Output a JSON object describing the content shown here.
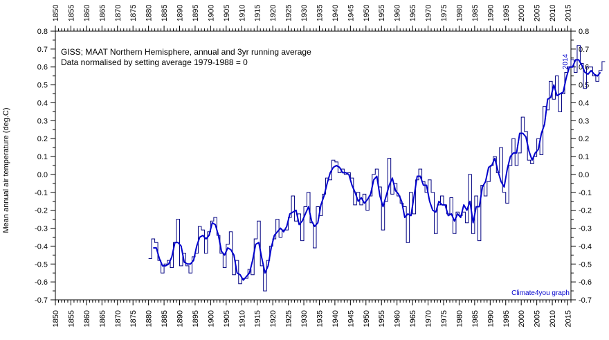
{
  "chart_data": {
    "type": "line",
    "title_lines": [
      "GISS; MAAT Northern Hemisphere, annual and 3yr running average",
      "Data normalised by setting average 1979-1988 = 0"
    ],
    "ylabel": "Mean annual air temperature (deg.C)",
    "xlabel": "",
    "credit": "Climate4you graph",
    "end_label": "2014",
    "xlim": [
      1850,
      2016
    ],
    "ylim": [
      -0.7,
      0.8
    ],
    "x_ticks": [
      1850,
      1855,
      1860,
      1865,
      1870,
      1875,
      1880,
      1885,
      1890,
      1895,
      1900,
      1905,
      1910,
      1915,
      1920,
      1925,
      1930,
      1935,
      1940,
      1945,
      1950,
      1955,
      1960,
      1965,
      1970,
      1975,
      1980,
      1985,
      1990,
      1995,
      2000,
      2005,
      2010,
      2015
    ],
    "y_ticks": [
      "0.8",
      "0.7",
      "0.6",
      "0.5",
      "0.4",
      "0.3",
      "0.2",
      "0.1",
      "0.0",
      "-0.1",
      "-0.2",
      "-0.3",
      "-0.4",
      "-0.5",
      "-0.6",
      "-0.7"
    ],
    "grid": false,
    "series": [
      {
        "style": "step",
        "color": "#000080",
        "start_year": 1880,
        "values": [
          -0.47,
          -0.36,
          -0.38,
          -0.48,
          -0.55,
          -0.5,
          -0.48,
          -0.52,
          -0.38,
          -0.25,
          -0.51,
          -0.44,
          -0.51,
          -0.55,
          -0.46,
          -0.44,
          -0.29,
          -0.31,
          -0.44,
          -0.32,
          -0.26,
          -0.24,
          -0.34,
          -0.44,
          -0.52,
          -0.39,
          -0.32,
          -0.56,
          -0.48,
          -0.61,
          -0.58,
          -0.58,
          -0.53,
          -0.56,
          -0.36,
          -0.26,
          -0.51,
          -0.65,
          -0.48,
          -0.4,
          -0.36,
          -0.25,
          -0.35,
          -0.31,
          -0.31,
          -0.24,
          -0.12,
          -0.26,
          -0.22,
          -0.37,
          -0.18,
          -0.1,
          -0.27,
          -0.41,
          -0.18,
          -0.23,
          -0.11,
          -0.02,
          -0.03,
          0.08,
          0.07,
          0.01,
          0.03,
          0.0,
          0.01,
          -0.02,
          -0.17,
          -0.1,
          -0.17,
          -0.11,
          -0.2,
          -0.12,
          0.0,
          0.03,
          -0.07,
          -0.31,
          -0.15,
          0.09,
          -0.11,
          -0.05,
          -0.12,
          -0.16,
          -0.18,
          -0.38,
          -0.1,
          -0.22,
          -0.03,
          0.03,
          -0.04,
          -0.1,
          -0.03,
          -0.1,
          -0.33,
          -0.17,
          -0.12,
          -0.17,
          -0.22,
          -0.13,
          -0.33,
          -0.21,
          -0.23,
          -0.21,
          -0.27,
          0.0,
          -0.33,
          -0.12,
          -0.37,
          -0.06,
          -0.12,
          -0.04,
          0.05,
          0.1,
          0.01,
          0.15,
          -0.1,
          -0.16,
          0.05,
          0.2,
          0.05,
          0.12,
          0.32,
          0.24,
          0.08,
          0.06,
          0.1,
          0.2,
          0.11,
          0.38,
          0.36,
          0.52,
          0.42,
          0.55,
          0.35,
          0.45,
          0.57,
          0.6,
          0.64,
          0.57,
          0.72,
          0.62,
          0.48,
          0.6,
          0.6,
          0.55,
          0.52,
          0.58,
          0.63
        ]
      },
      {
        "style": "line",
        "color": "#0000cc",
        "name": "3yr running average",
        "start_year": 1881,
        "values": [
          -0.41,
          -0.41,
          -0.47,
          -0.51,
          -0.51,
          -0.5,
          -0.46,
          -0.38,
          -0.38,
          -0.4,
          -0.49,
          -0.5,
          -0.5,
          -0.48,
          -0.4,
          -0.35,
          -0.34,
          -0.36,
          -0.34,
          -0.27,
          -0.28,
          -0.34,
          -0.43,
          -0.45,
          -0.41,
          -0.42,
          -0.45,
          -0.55,
          -0.56,
          -0.59,
          -0.57,
          -0.55,
          -0.48,
          -0.39,
          -0.38,
          -0.47,
          -0.55,
          -0.51,
          -0.41,
          -0.34,
          -0.32,
          -0.3,
          -0.32,
          -0.29,
          -0.22,
          -0.21,
          -0.2,
          -0.28,
          -0.26,
          -0.22,
          -0.18,
          -0.26,
          -0.29,
          -0.27,
          -0.17,
          -0.12,
          -0.05,
          0.01,
          0.04,
          0.05,
          0.04,
          0.01,
          0.01,
          0.0,
          -0.06,
          -0.1,
          -0.15,
          -0.13,
          -0.16,
          -0.14,
          -0.11,
          -0.03,
          -0.01,
          -0.12,
          -0.18,
          -0.12,
          -0.06,
          -0.02,
          -0.09,
          -0.11,
          -0.15,
          -0.24,
          -0.22,
          -0.23,
          -0.12,
          -0.01,
          -0.01,
          -0.06,
          -0.06,
          -0.15,
          -0.2,
          -0.21,
          -0.15,
          -0.17,
          -0.17,
          -0.23,
          -0.22,
          -0.26,
          -0.22,
          -0.24,
          -0.17,
          -0.2,
          -0.15,
          -0.27,
          -0.18,
          -0.18,
          -0.07,
          -0.04,
          0.04,
          0.05,
          0.09,
          0.02,
          -0.04,
          -0.07,
          0.03,
          0.1,
          0.12,
          0.12,
          0.23,
          0.23,
          0.21,
          0.13,
          0.08,
          0.12,
          0.14,
          0.23,
          0.28,
          0.42,
          0.43,
          0.5,
          0.44,
          0.45,
          0.46,
          0.54,
          0.6,
          0.6,
          0.64,
          0.64,
          0.61,
          0.57,
          0.56,
          0.58,
          0.56,
          0.55,
          0.57
        ]
      }
    ]
  }
}
